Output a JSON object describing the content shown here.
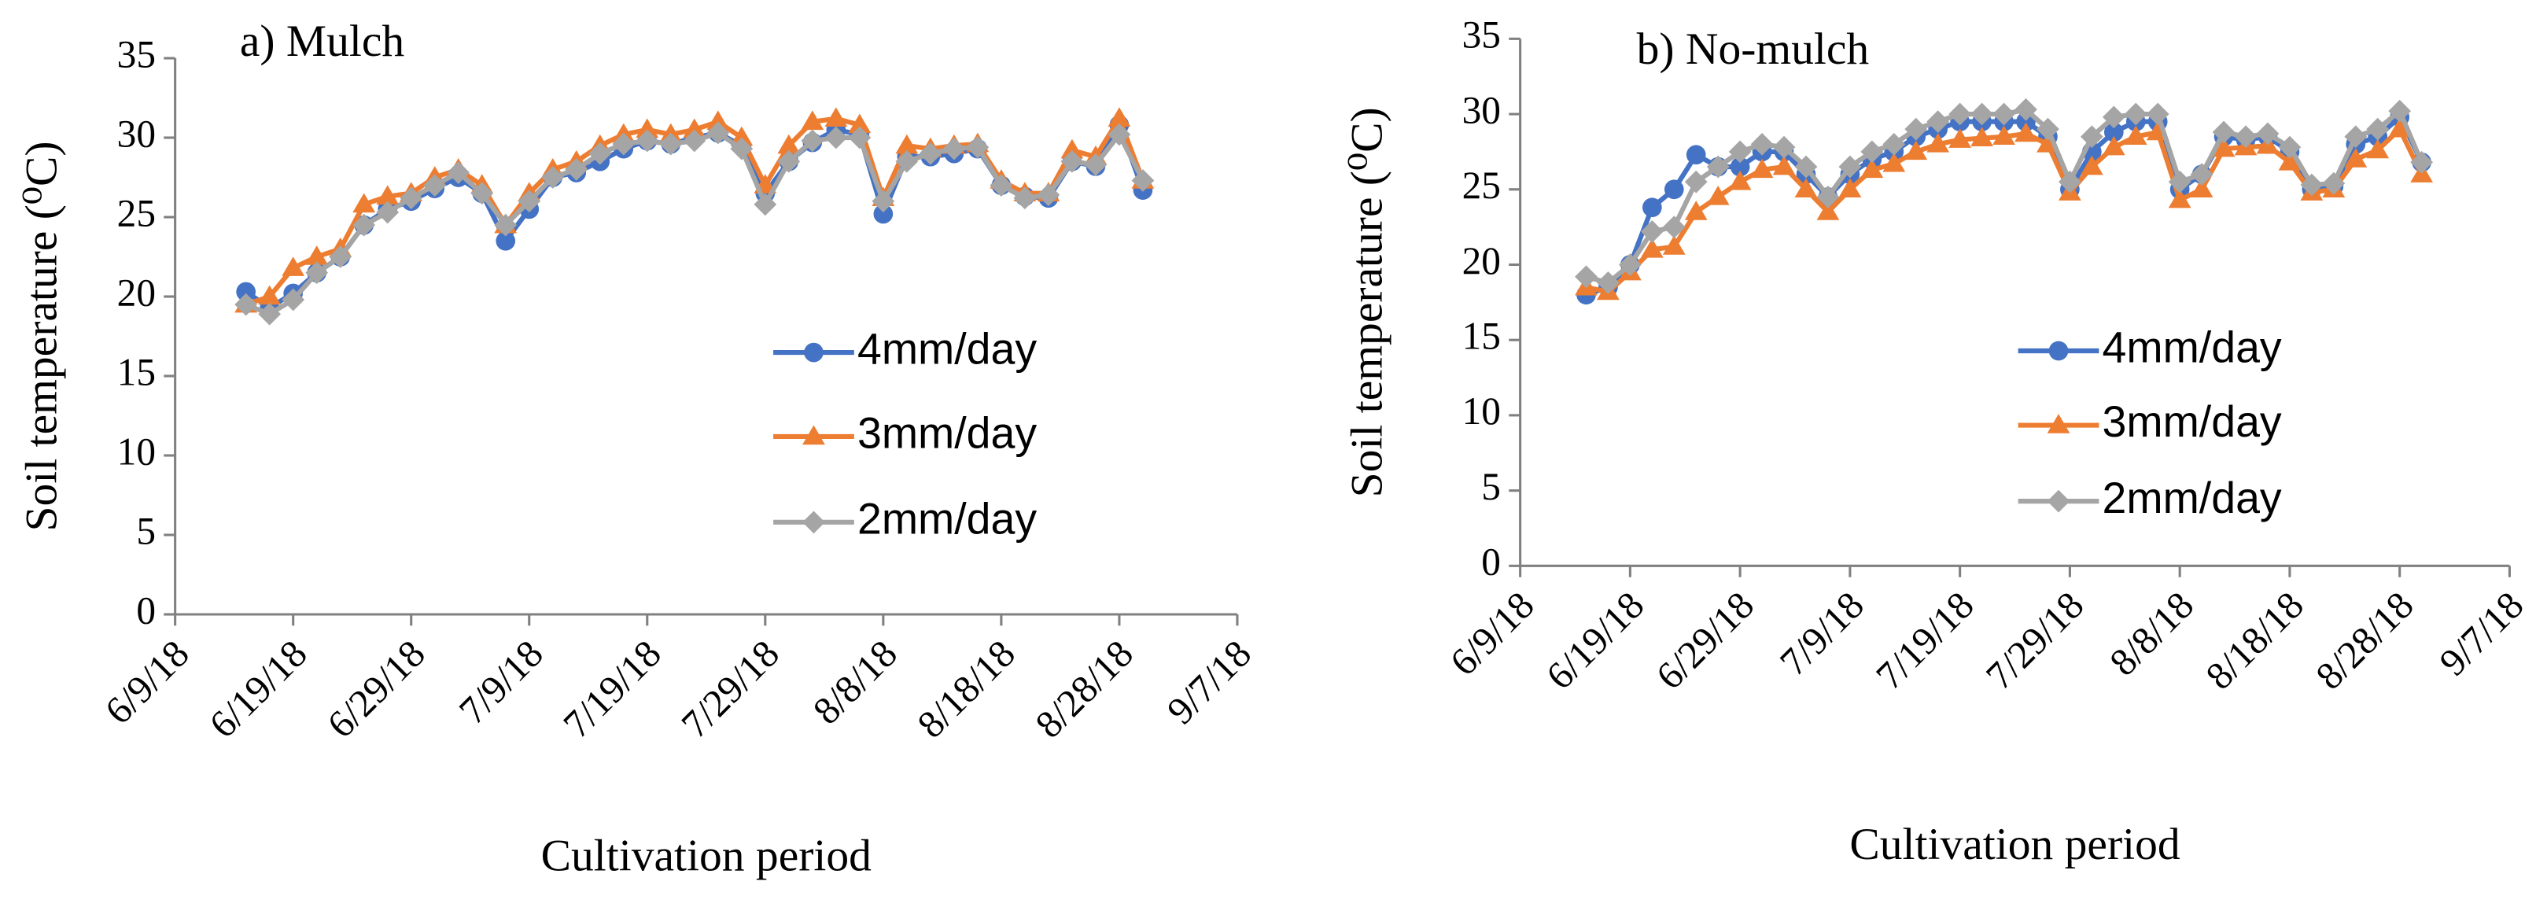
{
  "chart_data": [
    {
      "type": "line",
      "title": "a) Mulch",
      "y_label": "Soil temperature (⁰C)",
      "x_label": "Cultivation period",
      "x": [
        "2018-06-15",
        "2018-06-17",
        "2018-06-19",
        "2018-06-21",
        "2018-06-23",
        "2018-06-25",
        "2018-06-27",
        "2018-06-29",
        "2018-07-01",
        "2018-07-03",
        "2018-07-05",
        "2018-07-07",
        "2018-07-09",
        "2018-07-11",
        "2018-07-13",
        "2018-07-15",
        "2018-07-17",
        "2018-07-19",
        "2018-07-21",
        "2018-07-23",
        "2018-07-25",
        "2018-07-27",
        "2018-07-29",
        "2018-07-31",
        "2018-08-02",
        "2018-08-04",
        "2018-08-06",
        "2018-08-08",
        "2018-08-10",
        "2018-08-12",
        "2018-08-14",
        "2018-08-16",
        "2018-08-18",
        "2018-08-20",
        "2018-08-22",
        "2018-08-24",
        "2018-08-26",
        "2018-08-28",
        "2018-08-30"
      ],
      "series": [
        {
          "name": "4mm/day",
          "color": "#4472c4",
          "marker": "circle",
          "values": [
            20.3,
            19.3,
            20.2,
            21.5,
            22.5,
            24.5,
            25.5,
            26,
            26.8,
            27.5,
            26.5,
            23.5,
            25.5,
            27.5,
            27.8,
            28.5,
            29.3,
            29.8,
            29.6,
            30,
            30.3,
            29.5,
            26.5,
            28.5,
            29.7,
            30.5,
            30.2,
            25.2,
            28.8,
            28.8,
            29,
            29.3,
            27,
            26.3,
            26.2,
            28.5,
            28.2,
            30.8,
            26.7
          ]
        },
        {
          "name": "3mm/day",
          "color": "#ed7d31",
          "marker": "triangle",
          "values": [
            19.5,
            20,
            21.8,
            22.5,
            23,
            25.8,
            26.3,
            26.5,
            27.5,
            28,
            27,
            24.5,
            26.5,
            28,
            28.5,
            29.5,
            30.2,
            30.5,
            30.2,
            30.5,
            31,
            30,
            27,
            29.5,
            31,
            31.2,
            30.8,
            26.2,
            29.5,
            29.3,
            29.5,
            29.6,
            27.3,
            26.5,
            26.5,
            29.2,
            28.8,
            31.2,
            27.3
          ]
        },
        {
          "name": "2mm/day",
          "color": "#a5a5a5",
          "marker": "diamond",
          "values": [
            19.5,
            18.9,
            19.8,
            21.5,
            22.5,
            24.5,
            25.3,
            26.2,
            27,
            27.8,
            26.5,
            24.5,
            26,
            27.5,
            28,
            29,
            29.6,
            29.8,
            29.6,
            29.8,
            30.3,
            29.3,
            25.8,
            28.5,
            29.8,
            30,
            30,
            26,
            28.5,
            29,
            29.3,
            29.4,
            27,
            26.2,
            26.4,
            28.5,
            28.3,
            30.2,
            27.3
          ]
        }
      ],
      "xlim": [
        "2018-06-09",
        "2018-09-07"
      ],
      "xticks": [
        {
          "value": "2018-06-09",
          "label": "6/9/18"
        },
        {
          "value": "2018-06-19",
          "label": "6/19/18"
        },
        {
          "value": "2018-06-29",
          "label": "6/29/18"
        },
        {
          "value": "2018-07-09",
          "label": "7/9/18"
        },
        {
          "value": "2018-07-19",
          "label": "7/19/18"
        },
        {
          "value": "2018-07-29",
          "label": "7/29/18"
        },
        {
          "value": "2018-08-08",
          "label": "8/8/18"
        },
        {
          "value": "2018-08-18",
          "label": "8/18/18"
        },
        {
          "value": "2018-08-28",
          "label": "8/28/18"
        },
        {
          "value": "2018-09-07",
          "label": "9/7/18"
        }
      ],
      "ylim": [
        0,
        35
      ],
      "yticks": [
        0,
        5,
        10,
        15,
        20,
        25,
        30,
        35
      ],
      "legend": "right"
    },
    {
      "type": "line",
      "title": "b) No-mulch",
      "y_label": "Soil temperature (⁰C)",
      "x_label": "Cultivation period",
      "x": [
        "2018-06-15",
        "2018-06-17",
        "2018-06-19",
        "2018-06-21",
        "2018-06-23",
        "2018-06-25",
        "2018-06-27",
        "2018-06-29",
        "2018-07-01",
        "2018-07-03",
        "2018-07-05",
        "2018-07-07",
        "2018-07-09",
        "2018-07-11",
        "2018-07-13",
        "2018-07-15",
        "2018-07-17",
        "2018-07-19",
        "2018-07-21",
        "2018-07-23",
        "2018-07-25",
        "2018-07-27",
        "2018-07-29",
        "2018-07-31",
        "2018-08-02",
        "2018-08-04",
        "2018-08-06",
        "2018-08-08",
        "2018-08-10",
        "2018-08-12",
        "2018-08-14",
        "2018-08-16",
        "2018-08-18",
        "2018-08-20",
        "2018-08-22",
        "2018-08-24",
        "2018-08-26",
        "2018-08-28",
        "2018-08-30"
      ],
      "series": [
        {
          "name": "4mm/day",
          "color": "#4472c4",
          "marker": "circle",
          "values": [
            18,
            18.5,
            20,
            23.8,
            25,
            27.3,
            26.5,
            26.5,
            27.5,
            27.5,
            26,
            24.5,
            26,
            27,
            27.5,
            28.5,
            29,
            29.5,
            29.5,
            29.5,
            29.5,
            28.5,
            25,
            27.5,
            28.8,
            29.5,
            29.5,
            25,
            26,
            28.5,
            28.3,
            28.5,
            27.5,
            25,
            25.2,
            28,
            28.5,
            29.8,
            26.8
          ]
        },
        {
          "name": "3mm/day",
          "color": "#ed7d31",
          "marker": "triangle",
          "values": [
            18.5,
            18.2,
            19.5,
            21,
            21.2,
            23.5,
            24.5,
            25.5,
            26.3,
            26.5,
            25,
            23.5,
            25,
            26.3,
            26.7,
            27.5,
            28,
            28.3,
            28.4,
            28.5,
            28.7,
            28,
            24.8,
            26.5,
            27.8,
            28.5,
            28.8,
            24.3,
            25,
            27.7,
            27.8,
            27.9,
            26.8,
            24.8,
            25,
            27,
            27.6,
            29,
            26
          ]
        },
        {
          "name": "2mm/day",
          "color": "#a5a5a5",
          "marker": "diamond",
          "values": [
            19.2,
            18.8,
            20,
            22.2,
            22.5,
            25.5,
            26.5,
            27.5,
            28,
            27.8,
            26.5,
            24.5,
            26.5,
            27.5,
            28,
            29,
            29.5,
            30,
            30,
            30,
            30.3,
            29,
            25.5,
            28.5,
            29.8,
            30,
            30,
            25.5,
            26,
            28.8,
            28.5,
            28.7,
            27.8,
            25.3,
            25.4,
            28.5,
            29,
            30.2,
            26.8
          ]
        }
      ],
      "xlim": [
        "2018-06-09",
        "2018-09-07"
      ],
      "xticks": [
        {
          "value": "2018-06-09",
          "label": "6/9/18"
        },
        {
          "value": "2018-06-19",
          "label": "6/19/18"
        },
        {
          "value": "2018-06-29",
          "label": "6/29/18"
        },
        {
          "value": "2018-07-09",
          "label": "7/9/18"
        },
        {
          "value": "2018-07-19",
          "label": "7/19/18"
        },
        {
          "value": "2018-07-29",
          "label": "7/29/18"
        },
        {
          "value": "2018-08-08",
          "label": "8/8/18"
        },
        {
          "value": "2018-08-18",
          "label": "8/18/18"
        },
        {
          "value": "2018-08-28",
          "label": "8/28/18"
        },
        {
          "value": "2018-09-07",
          "label": "9/7/18"
        }
      ],
      "ylim": [
        0,
        35
      ],
      "yticks": [
        0,
        5,
        10,
        15,
        20,
        25,
        30,
        35
      ],
      "legend": "right"
    }
  ]
}
